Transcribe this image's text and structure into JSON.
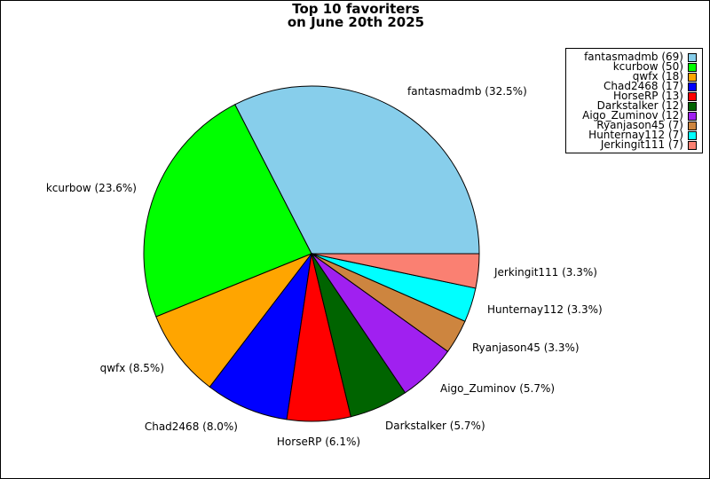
{
  "chart_data": {
    "type": "pie",
    "title_lines": [
      "Top 10 favoriters",
      "on June 20th 2025"
    ],
    "legend_position": "top-right",
    "slices": [
      {
        "name": "fantasmadmb",
        "count": 69,
        "percent": 32.5,
        "color": "#87ceeb",
        "legend_label": "fantasmadmb (69)",
        "slice_label": "fantasmadmb (32.5%)"
      },
      {
        "name": "kcurbow",
        "count": 50,
        "percent": 23.6,
        "color": "#00ff00",
        "legend_label": "kcurbow (50)",
        "slice_label": "kcurbow (23.6%)"
      },
      {
        "name": "qwfx",
        "count": 18,
        "percent": 8.5,
        "color": "#ffa500",
        "legend_label": "qwfx (18)",
        "slice_label": "qwfx (8.5%)"
      },
      {
        "name": "Chad2468",
        "count": 17,
        "percent": 8.0,
        "color": "#0000ff",
        "legend_label": "Chad2468 (17)",
        "slice_label": "Chad2468 (8.0%)"
      },
      {
        "name": "HorseRP",
        "count": 13,
        "percent": 6.1,
        "color": "#ff0000",
        "legend_label": "HorseRP (13)",
        "slice_label": "HorseRP (6.1%)"
      },
      {
        "name": "Darkstalker",
        "count": 12,
        "percent": 5.7,
        "color": "#006400",
        "legend_label": "Darkstalker (12)",
        "slice_label": "Darkstalker (5.7%)"
      },
      {
        "name": "Aigo_Zuminov",
        "count": 12,
        "percent": 5.7,
        "color": "#a020f0",
        "legend_label": "Aigo_Zuminov (12)",
        "slice_label": "Aigo_Zuminov (5.7%)"
      },
      {
        "name": "Ryanjason45",
        "count": 7,
        "percent": 3.3,
        "color": "#cd853f",
        "legend_label": "Ryanjason45 (7)",
        "slice_label": "Ryanjason45 (3.3%)"
      },
      {
        "name": "Hunternay112",
        "count": 7,
        "percent": 3.3,
        "color": "#00ffff",
        "legend_label": "Hunternay112 (7)",
        "slice_label": "Hunternay112 (3.3%)"
      },
      {
        "name": "Jerkingit111",
        "count": 7,
        "percent": 3.3,
        "color": "#fa8072",
        "legend_label": "Jerkingit111 (7)",
        "slice_label": "Jerkingit111 (3.3%)"
      }
    ]
  }
}
